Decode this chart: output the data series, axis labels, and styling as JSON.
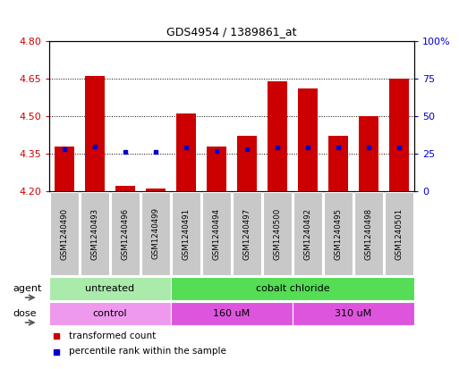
{
  "title": "GDS4954 / 1389861_at",
  "samples": [
    "GSM1240490",
    "GSM1240493",
    "GSM1240496",
    "GSM1240499",
    "GSM1240491",
    "GSM1240494",
    "GSM1240497",
    "GSM1240500",
    "GSM1240492",
    "GSM1240495",
    "GSM1240498",
    "GSM1240501"
  ],
  "transformed_count": [
    4.38,
    4.66,
    4.22,
    4.21,
    4.51,
    4.38,
    4.42,
    4.64,
    4.61,
    4.42,
    4.5,
    4.65
  ],
  "percentile_rank": [
    28,
    30,
    26,
    26,
    29,
    27,
    28,
    29,
    29,
    29,
    29,
    29
  ],
  "bar_bottom": 4.2,
  "ylim": [
    4.2,
    4.8
  ],
  "ylim_right": [
    0,
    100
  ],
  "yticks_left": [
    4.2,
    4.35,
    4.5,
    4.65,
    4.8
  ],
  "yticks_right": [
    0,
    25,
    50,
    75,
    100
  ],
  "ytick_labels_right": [
    "0",
    "25",
    "50",
    "75",
    "100%"
  ],
  "hlines": [
    4.35,
    4.5,
    4.65
  ],
  "bar_color": "#cc0000",
  "dot_color": "#0000cc",
  "bar_width": 0.65,
  "agent_groups": [
    {
      "label": "untreated",
      "start": 0,
      "end": 4,
      "color": "#aaeaaa"
    },
    {
      "label": "cobalt chloride",
      "start": 4,
      "end": 12,
      "color": "#55dd55"
    }
  ],
  "dose_groups": [
    {
      "label": "control",
      "start": 0,
      "end": 4,
      "color": "#ee99ee"
    },
    {
      "label": "160 uM",
      "start": 4,
      "end": 8,
      "color": "#dd55dd"
    },
    {
      "label": "310 uM",
      "start": 8,
      "end": 12,
      "color": "#dd55dd"
    }
  ],
  "legend_items": [
    {
      "label": "transformed count",
      "color": "#cc0000"
    },
    {
      "label": "percentile rank within the sample",
      "color": "#0000cc"
    }
  ],
  "ylabel_color": "#cc0000",
  "ylabel2_color": "#0000cc",
  "background_color": "#ffffff",
  "agent_label": "agent",
  "dose_label": "dose",
  "sample_box_color": "#c8c8c8"
}
